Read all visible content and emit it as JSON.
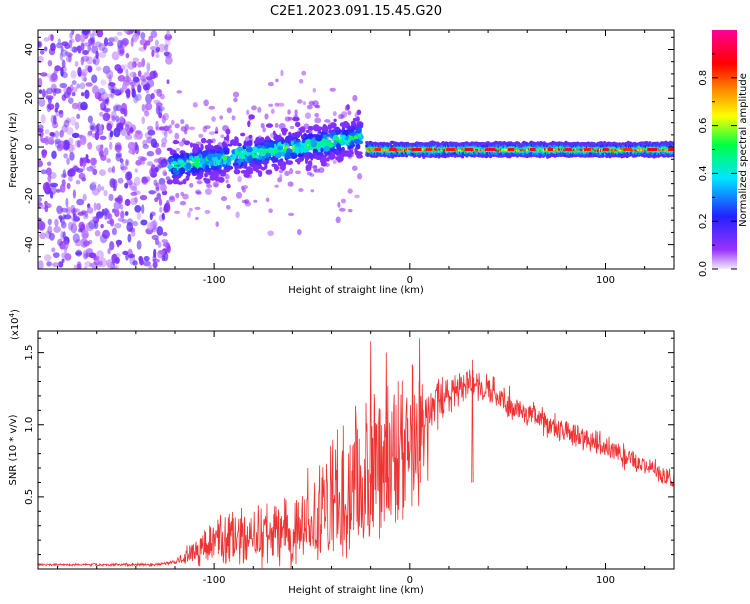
{
  "title": "C2E1.2023.091.15.45.G20",
  "chart_data": [
    {
      "type": "heatmap",
      "xlabel": "Height of straight line (km)",
      "ylabel": "Frequency (Hz)",
      "xlim": [
        -190,
        135
      ],
      "ylim": [
        -50,
        48
      ],
      "x_ticks": [
        -100,
        0,
        100
      ],
      "y_ticks": [
        -40,
        -20,
        0,
        20,
        40
      ],
      "colorbar": {
        "label": "Normalized spectral amplitude",
        "range": [
          0,
          1
        ],
        "ticks": [
          0.0,
          0.2,
          0.4,
          0.6,
          0.8
        ],
        "tick_labels": [
          "0.0",
          "0.2",
          "0.4",
          "0.6",
          "0.8"
        ],
        "colors": [
          "#f0e6ff",
          "#9933ff",
          "#2222ff",
          "#00e5ff",
          "#00ff44",
          "#ffff00",
          "#ff8800",
          "#ff0000",
          "#ff00aa"
        ]
      },
      "regions": [
        {
          "name": "noise",
          "x_range": [
            -190,
            -123
          ],
          "f_range": [
            -50,
            48
          ],
          "amplitude": 0.15
        },
        {
          "name": "signal-rising",
          "x_range": [
            -123,
            -25
          ],
          "f_center_start": -8,
          "f_center_end": 4,
          "width_hz": 9,
          "amplitude": 0.4
        },
        {
          "name": "signal-stable",
          "x_range": [
            -22,
            135
          ],
          "f_center": -1,
          "width_hz": 4,
          "amplitude": 0.85
        }
      ]
    },
    {
      "type": "line",
      "xlabel": "Height of straight line (km)",
      "ylabel": "SNR (10 * v/v)",
      "y_multiplier": "(x10",
      "y_multiplier_exp": "4",
      "y_multiplier_close": ")",
      "xlim": [
        -190,
        135
      ],
      "ylim": [
        0,
        1.65
      ],
      "x_ticks": [
        -100,
        0,
        100
      ],
      "y_ticks": [
        0.5,
        1.0,
        1.5
      ],
      "y_tick_labels": [
        "0.5",
        "1.0",
        "1.5"
      ],
      "color": "#ee3333",
      "envelope": {
        "x": [
          -190,
          -130,
          -120,
          -110,
          -100,
          -80,
          -60,
          -50,
          -40,
          -30,
          -20,
          -10,
          0,
          5,
          10,
          20,
          30,
          40,
          50,
          60,
          70,
          80,
          90,
          100,
          110,
          120,
          130,
          135
        ],
        "y": [
          0.03,
          0.03,
          0.05,
          0.12,
          0.2,
          0.22,
          0.28,
          0.35,
          0.45,
          0.6,
          0.75,
          0.85,
          0.9,
          1.0,
          1.1,
          1.2,
          1.3,
          1.25,
          1.15,
          1.08,
          1.0,
          0.95,
          0.9,
          0.85,
          0.78,
          0.72,
          0.65,
          0.6
        ]
      },
      "spread": {
        "x": [
          -190,
          -120,
          -100,
          -60,
          -40,
          -20,
          0,
          10,
          30,
          60,
          100,
          135
        ],
        "y": [
          0.005,
          0.01,
          0.15,
          0.2,
          0.35,
          0.5,
          0.45,
          0.15,
          0.1,
          0.08,
          0.07,
          0.06
        ]
      },
      "peaks": [
        {
          "x": -20,
          "y": 1.58
        },
        {
          "x": 5,
          "y": 1.6
        },
        {
          "x": -12,
          "y": 1.5
        },
        {
          "x": 32,
          "y": 1.45
        }
      ]
    }
  ]
}
